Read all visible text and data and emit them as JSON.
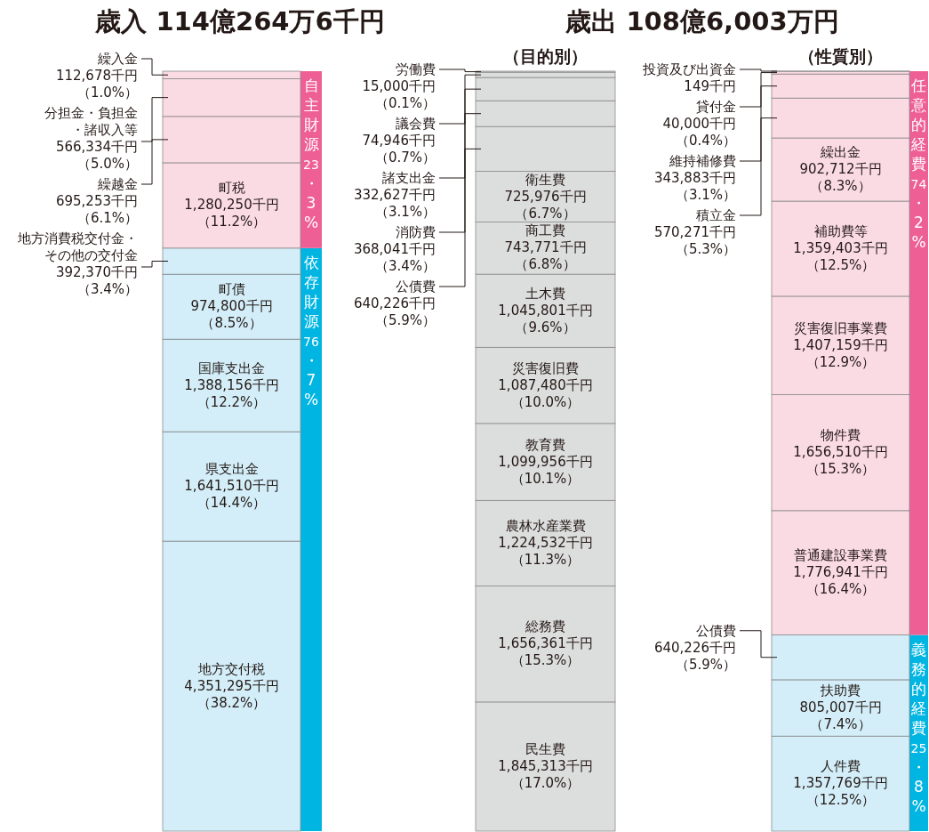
{
  "chart_data": [
    {
      "type": "bar",
      "stacked": true,
      "title": "歳入 114億264万6千円",
      "categories": [
        null
      ],
      "series": [
        {
          "name": "地方交付税",
          "color": "#d3eef8",
          "values": [
            4351295
          ],
          "value_labels": [
            "4,351,295千円（38.2%）"
          ]
        },
        {
          "name": "県支出金",
          "color": "#d3eef8",
          "values": [
            1641510
          ],
          "value_labels": [
            "1,641,510千円（14.4%）"
          ]
        },
        {
          "name": "国庫支出金",
          "color": "#d3eef8",
          "values": [
            1388156
          ],
          "value_labels": [
            "1,388,156千円（12.2%）"
          ]
        },
        {
          "name": "町債",
          "color": "#d3eef8",
          "values": [
            974800
          ],
          "value_labels": [
            "974,800千円（8.5%）"
          ]
        },
        {
          "name": "地方消費税交付金・その他の交付金",
          "color": "#d3eef8",
          "values": [
            392370
          ],
          "value_labels": [
            "392,370千円（3.4%）"
          ]
        },
        {
          "name": "町税",
          "color": "#fadbe4",
          "values": [
            1280250
          ],
          "value_labels": [
            "1,280,250千円（11.2%）"
          ]
        },
        {
          "name": "繰越金",
          "color": "#fadbe4",
          "values": [
            695253
          ],
          "value_labels": [
            "695,253千円（6.1%）"
          ]
        },
        {
          "name": "分担金・負担金・諸収入等",
          "color": "#fadbe4",
          "values": [
            566334
          ],
          "value_labels": [
            "566,334千円（5.0%）"
          ]
        },
        {
          "name": "繰入金",
          "color": "#fadbe4",
          "values": [
            112678
          ],
          "value_labels": [
            "112,678千円（1.0%）"
          ]
        }
      ],
      "bands": [
        {
          "axis": "y",
          "from": 0,
          "to": 8748131,
          "label": "依存財源76・7%",
          "color": "#00b5e2"
        },
        {
          "axis": "y",
          "from": 8748131,
          "to": 11402646,
          "label": "自主財源23・3%",
          "color": "#ee5f95"
        }
      ]
    },
    {
      "type": "bar",
      "stacked": true,
      "title": "歳出 108億6,003万円",
      "subtitle": "（目的別）",
      "categories": [
        null
      ],
      "series": [
        {
          "name": "民生費",
          "color": "#dcdddd",
          "values": [
            1845313
          ],
          "value_labels": [
            "1,845,313千円（17.0%）"
          ]
        },
        {
          "name": "総務費",
          "color": "#dcdddd",
          "values": [
            1656361
          ],
          "value_labels": [
            "1,656,361千円（15.3%）"
          ]
        },
        {
          "name": "農林水産業費",
          "color": "#dcdddd",
          "values": [
            1224532
          ],
          "value_labels": [
            "1,224,532千円（11.3%）"
          ]
        },
        {
          "name": "教育費",
          "color": "#dcdddd",
          "values": [
            1099956
          ],
          "value_labels": [
            "1,099,956千円（10.1%）"
          ]
        },
        {
          "name": "災害復旧費",
          "color": "#dcdddd",
          "values": [
            1087480
          ],
          "value_labels": [
            "1,087,480千円（10.0%）"
          ]
        },
        {
          "name": "土木費",
          "color": "#dcdddd",
          "values": [
            1045801
          ],
          "value_labels": [
            "1,045,801千円（9.6%）"
          ]
        },
        {
          "name": "商工費",
          "color": "#dcdddd",
          "values": [
            743771
          ],
          "value_labels": [
            "743,771千円（6.8%）"
          ]
        },
        {
          "name": "衛生費",
          "color": "#dcdddd",
          "values": [
            725976
          ],
          "value_labels": [
            "725,976千円（6.7%）"
          ]
        },
        {
          "name": "公債費",
          "color": "#dcdddd",
          "values": [
            640226
          ],
          "value_labels": [
            "640,226千円（5.9%）"
          ]
        },
        {
          "name": "消防費",
          "color": "#dcdddd",
          "values": [
            368041
          ],
          "value_labels": [
            "368,041千円（3.4%）"
          ]
        },
        {
          "name": "諸支出金",
          "color": "#dcdddd",
          "values": [
            332627
          ],
          "value_labels": [
            "332,627千円（3.1%）"
          ]
        },
        {
          "name": "議会費",
          "color": "#dcdddd",
          "values": [
            74946
          ],
          "value_labels": [
            "74,946千円（0.7%）"
          ]
        },
        {
          "name": "労働費",
          "color": "#dcdddd",
          "values": [
            15000
          ],
          "value_labels": [
            "15,000千円（0.1%）"
          ]
        }
      ]
    },
    {
      "type": "bar",
      "stacked": true,
      "subtitle": "（性質別）",
      "categories": [
        null
      ],
      "series": [
        {
          "name": "人件費",
          "color": "#d3eef8",
          "values": [
            1357769
          ],
          "value_labels": [
            "1,357,769千円（12.5%）"
          ]
        },
        {
          "name": "扶助費",
          "color": "#d3eef8",
          "values": [
            805007
          ],
          "value_labels": [
            "805,007千円（7.4%）"
          ]
        },
        {
          "name": "公債費",
          "color": "#d3eef8",
          "values": [
            640226
          ],
          "value_labels": [
            "640,226千円（5.9%）"
          ]
        },
        {
          "name": "普通建設事業費",
          "color": "#fadbe4",
          "values": [
            1776941
          ],
          "value_labels": [
            "1,776,941千円（16.4%）"
          ]
        },
        {
          "name": "物件費",
          "color": "#fadbe4",
          "values": [
            1656510
          ],
          "value_labels": [
            "1,656,510千円（15.3%）"
          ]
        },
        {
          "name": "災害復旧事業費",
          "color": "#fadbe4",
          "values": [
            1407159
          ],
          "value_labels": [
            "1,407,159千円（12.9%）"
          ]
        },
        {
          "name": "補助費等",
          "color": "#fadbe4",
          "values": [
            1359403
          ],
          "value_labels": [
            "1,359,403千円（12.5%）"
          ]
        },
        {
          "name": "繰出金",
          "color": "#fadbe4",
          "values": [
            902712
          ],
          "value_labels": [
            "902,712千円（8.3%）"
          ]
        },
        {
          "name": "積立金",
          "color": "#fadbe4",
          "values": [
            570271
          ],
          "value_labels": [
            "570,271千円（5.3%）"
          ]
        },
        {
          "name": "維持補修費",
          "color": "#fadbe4",
          "values": [
            343883
          ],
          "value_labels": [
            "343,883千円（3.1%）"
          ]
        },
        {
          "name": "貸付金",
          "color": "#fadbe4",
          "values": [
            40000
          ],
          "value_labels": [
            "40,000千円（0.4%）"
          ]
        },
        {
          "name": "投資及び出資金",
          "color": "#fadbe4",
          "values": [
            149
          ],
          "value_labels": [
            "149千円"
          ]
        }
      ],
      "bands": [
        {
          "axis": "y",
          "from": 0,
          "to": 2803002,
          "label": "義務的経費25・8%",
          "color": "#00b5e2"
        },
        {
          "axis": "y",
          "from": 2803002,
          "to": 10860030,
          "label": "任意的経費74・2%",
          "color": "#ee5f95"
        }
      ]
    }
  ]
}
